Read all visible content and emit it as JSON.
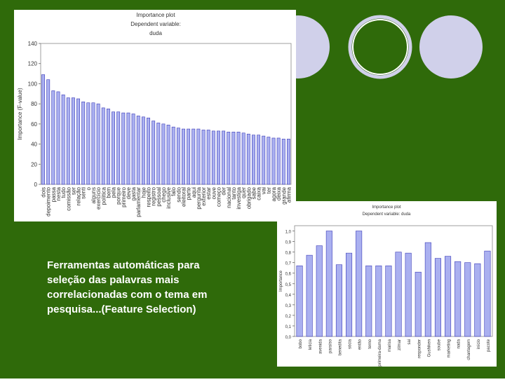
{
  "chart_data": [
    {
      "type": "bar",
      "title": "Importance plot",
      "subtitle": "Dependent variable:",
      "subtitle2": "duda",
      "ylabel": "Importance (F-value)",
      "categories": [
        "dois",
        "depoimento",
        "passa",
        "nesta",
        "tudo",
        "comissão",
        "ser",
        "relação",
        "senti",
        "o",
        "alguns",
        "exercício",
        "política",
        "bem",
        "pela",
        "porque",
        "primeiro",
        "deve",
        "gasta",
        "parlamentar",
        "hoje",
        "respeito",
        "registro",
        "pessoal",
        "chego",
        "inclusive",
        "falo",
        "sendo",
        "eleitoral",
        "parte",
        "aqui",
        "pergunta",
        "exterior",
        "estar",
        "ouve",
        "começo",
        "der",
        "nacional",
        "tanto",
        "investiga",
        "quer",
        "obrigado",
        "sabe",
        "caixa",
        "vai",
        "ter",
        "agora",
        "deixa",
        "grande",
        "afirma"
      ],
      "values": [
        109,
        104,
        93,
        92,
        89,
        86,
        86,
        85,
        82,
        81,
        81,
        80,
        76,
        75,
        72,
        72,
        71,
        71,
        70,
        68,
        67,
        66,
        63,
        61,
        60,
        59,
        57,
        56,
        55,
        55,
        55,
        55,
        54,
        54,
        53,
        53,
        53,
        52,
        52,
        52,
        51,
        50,
        49,
        49,
        48,
        47,
        46,
        46,
        45,
        45
      ],
      "color": "#aab0f0",
      "ylim": [
        0,
        140
      ],
      "yticks": [
        0,
        20,
        40,
        60,
        80,
        100,
        120,
        140
      ]
    },
    {
      "type": "bar",
      "title": "Importance plot",
      "subtitle": "Dependent variable: duda",
      "ylabel": "Importance",
      "categories": [
        "bobo",
        "leticia",
        "avenida",
        "paraíso",
        "benedita",
        "sócia",
        "então",
        "terno",
        "primeira-dama",
        "marisa",
        "zilmar",
        "sai",
        "responder",
        "Gushiken",
        "soube",
        "marketing",
        "nada",
        "chantagem",
        "início",
        "pacote"
      ],
      "values": [
        0.67,
        0.77,
        0.86,
        1.0,
        0.68,
        0.79,
        1.0,
        0.67,
        0.67,
        0.67,
        0.8,
        0.79,
        0.61,
        0.89,
        0.74,
        0.76,
        0.71,
        0.7,
        0.69,
        0.81
      ],
      "color": "#aab0f0",
      "ylim": [
        0,
        1.05
      ],
      "yticks": [
        {
          "value": 0,
          "label": "0,0"
        },
        {
          "value": 0.1,
          "label": "0,1"
        },
        {
          "value": 0.2,
          "label": "0,2"
        },
        {
          "value": 0.3,
          "label": "0,3"
        },
        {
          "value": 0.4,
          "label": "0,4"
        },
        {
          "value": 0.5,
          "label": "0,5"
        },
        {
          "value": 0.6,
          "label": "0,6"
        },
        {
          "value": 0.7,
          "label": "0,7"
        },
        {
          "value": 0.8,
          "label": "0,8"
        },
        {
          "value": 0.9,
          "label": "0,9"
        },
        {
          "value": 1.0,
          "label": "1,0"
        }
      ]
    }
  ],
  "caption": [
    "Ferramentas automáticas para",
    "seleção das palavras mais",
    "correlacionadas com o tema em",
    "pesquisa...(Feature Selection)"
  ]
}
